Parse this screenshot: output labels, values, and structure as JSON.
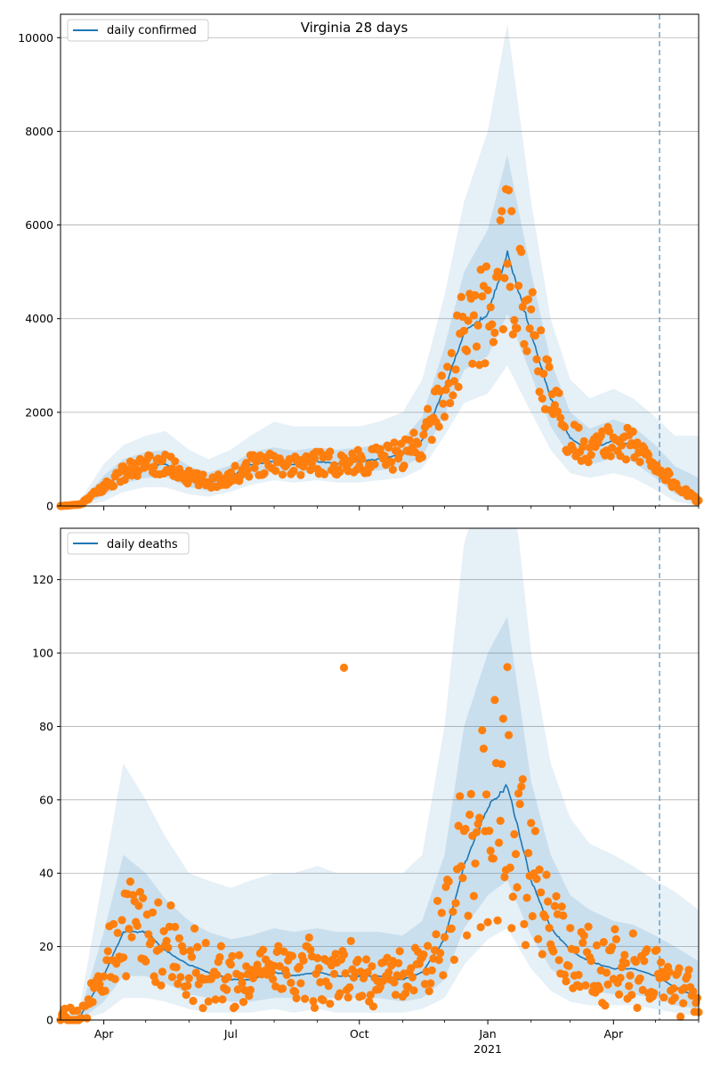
{
  "figure": {
    "title": "Virginia 28 days"
  },
  "colors": {
    "model": "#1f77b4",
    "observed": "#ff7f0e",
    "band": "#1f77b4",
    "grid": "#b0b0b0",
    "forecast_marker": "#1f77b4"
  },
  "x_axis": {
    "ticks": [
      {
        "date": "2020-04-01",
        "label": "Apr"
      },
      {
        "date": "2020-07-01",
        "label": "Jul"
      },
      {
        "date": "2020-10-01",
        "label": "Oct"
      },
      {
        "date": "2021-01-01",
        "label": "Jan",
        "sublabel": "2021"
      },
      {
        "date": "2021-04-01",
        "label": "Apr"
      }
    ],
    "minor_ticks": [
      "2020-05-01",
      "2020-06-01",
      "2020-08-01",
      "2020-09-01",
      "2020-11-01",
      "2020-12-01",
      "2021-02-01",
      "2021-03-01",
      "2021-05-01",
      "2021-06-01"
    ]
  },
  "chart_data": [
    {
      "type": "line",
      "legend": "daily confirmed",
      "legend_position": "upper left",
      "grid": "horizontal",
      "xlim": [
        "2020-03-01",
        "2021-06-01"
      ],
      "ylim": [
        0,
        10500
      ],
      "yticks": [
        0,
        2000,
        4000,
        6000,
        8000,
        10000
      ],
      "forecast_start": "2021-05-04",
      "model_series": {
        "x": [
          "2020-03-01",
          "2020-03-15",
          "2020-04-01",
          "2020-04-15",
          "2020-05-01",
          "2020-05-15",
          "2020-06-01",
          "2020-06-15",
          "2020-07-01",
          "2020-07-15",
          "2020-08-01",
          "2020-08-15",
          "2020-09-01",
          "2020-09-15",
          "2020-10-01",
          "2020-10-15",
          "2020-11-01",
          "2020-11-15",
          "2020-12-01",
          "2020-12-15",
          "2021-01-01",
          "2021-01-15",
          "2021-02-01",
          "2021-02-15",
          "2021-03-01",
          "2021-03-15",
          "2021-04-01",
          "2021-04-15",
          "2021-05-01",
          "2021-05-15",
          "2021-06-01"
        ],
        "values": [
          0,
          30,
          400,
          720,
          850,
          900,
          600,
          500,
          620,
          880,
          950,
          880,
          950,
          900,
          950,
          1000,
          1100,
          1400,
          2500,
          3700,
          4100,
          5400,
          3700,
          2300,
          1450,
          1200,
          1400,
          1300,
          900,
          450,
          100
        ]
      },
      "uncertainty_bands": [
        {
          "opacity": 0.11,
          "lower": [
            0,
            0,
            100,
            300,
            400,
            400,
            250,
            200,
            300,
            450,
            550,
            500,
            550,
            500,
            500,
            550,
            600,
            800,
            1500,
            2200,
            2400,
            3000,
            2000,
            1200,
            700,
            600,
            700,
            600,
            350,
            100,
            0
          ],
          "upper": [
            20,
            120,
            900,
            1300,
            1500,
            1600,
            1200,
            1000,
            1200,
            1500,
            1800,
            1700,
            1700,
            1700,
            1700,
            1800,
            2000,
            2700,
            4500,
            6500,
            8000,
            10300,
            6500,
            4000,
            2700,
            2300,
            2500,
            2300,
            1900,
            1500,
            1500
          ]
        },
        {
          "opacity": 0.14,
          "lower": [
            0,
            5,
            220,
            480,
            600,
            620,
            400,
            320,
            430,
            650,
            740,
            680,
            740,
            700,
            720,
            760,
            830,
            1060,
            1950,
            2900,
            3200,
            4100,
            2800,
            1700,
            1050,
            880,
            1020,
            940,
            600,
            260,
            20
          ],
          "upper": [
            10,
            70,
            650,
            1000,
            1150,
            1200,
            850,
            720,
            870,
            1150,
            1250,
            1180,
            1250,
            1200,
            1250,
            1300,
            1420,
            1900,
            3400,
            5000,
            5900,
            7500,
            5000,
            3100,
            2000,
            1650,
            1850,
            1700,
            1300,
            850,
            600
          ]
        }
      ],
      "observed_points": "generated"
    },
    {
      "type": "line",
      "legend": "daily deaths",
      "legend_position": "upper left",
      "grid": "horizontal",
      "xlim": [
        "2020-03-01",
        "2021-06-01"
      ],
      "ylim": [
        0,
        134
      ],
      "yticks": [
        0,
        20,
        40,
        60,
        80,
        100,
        120
      ],
      "forecast_start": "2021-05-04",
      "model_series": {
        "x": [
          "2020-03-01",
          "2020-03-15",
          "2020-04-01",
          "2020-04-15",
          "2020-05-01",
          "2020-05-15",
          "2020-06-01",
          "2020-06-15",
          "2020-07-01",
          "2020-07-15",
          "2020-08-01",
          "2020-08-15",
          "2020-09-01",
          "2020-09-15",
          "2020-10-01",
          "2020-10-15",
          "2020-11-01",
          "2020-11-15",
          "2020-12-01",
          "2020-12-15",
          "2021-01-01",
          "2021-01-15",
          "2021-02-01",
          "2021-02-15",
          "2021-03-01",
          "2021-03-15",
          "2021-04-01",
          "2021-04-15",
          "2021-05-01",
          "2021-05-15",
          "2021-06-01"
        ],
        "values": [
          0,
          1,
          12,
          24,
          24,
          19,
          15,
          13,
          11,
          11,
          13,
          12,
          13,
          12,
          12,
          12,
          11,
          13,
          22,
          42,
          58,
          64,
          38,
          25,
          19,
          16,
          14,
          14,
          12,
          9,
          6
        ]
      },
      "uncertainty_bands": [
        {
          "opacity": 0.11,
          "lower": [
            0,
            0,
            2,
            6,
            6,
            5,
            3,
            2,
            2,
            2,
            3,
            2,
            3,
            2,
            2,
            2,
            2,
            3,
            6,
            15,
            22,
            25,
            14,
            8,
            5,
            4,
            4,
            4,
            3,
            2,
            1
          ],
          "upper": [
            1,
            4,
            40,
            70,
            60,
            50,
            40,
            38,
            36,
            38,
            40,
            40,
            42,
            40,
            40,
            40,
            40,
            45,
            80,
            130,
            150,
            160,
            100,
            70,
            55,
            48,
            45,
            42,
            38,
            35,
            30
          ]
        },
        {
          "opacity": 0.14,
          "lower": [
            0,
            0,
            5,
            12,
            12,
            10,
            7,
            6,
            5,
            5,
            6,
            6,
            6,
            6,
            6,
            6,
            5,
            6,
            11,
            25,
            34,
            38,
            23,
            14,
            10,
            8,
            7,
            7,
            6,
            4,
            3
          ],
          "upper": [
            1,
            2,
            24,
            45,
            40,
            33,
            27,
            24,
            22,
            23,
            25,
            24,
            25,
            24,
            24,
            24,
            23,
            27,
            45,
            80,
            100,
            110,
            65,
            45,
            34,
            30,
            27,
            26,
            23,
            20,
            16
          ]
        }
      ],
      "observed_points": "generated",
      "outlier": {
        "date": "2020-09-20",
        "value": 96
      }
    }
  ]
}
